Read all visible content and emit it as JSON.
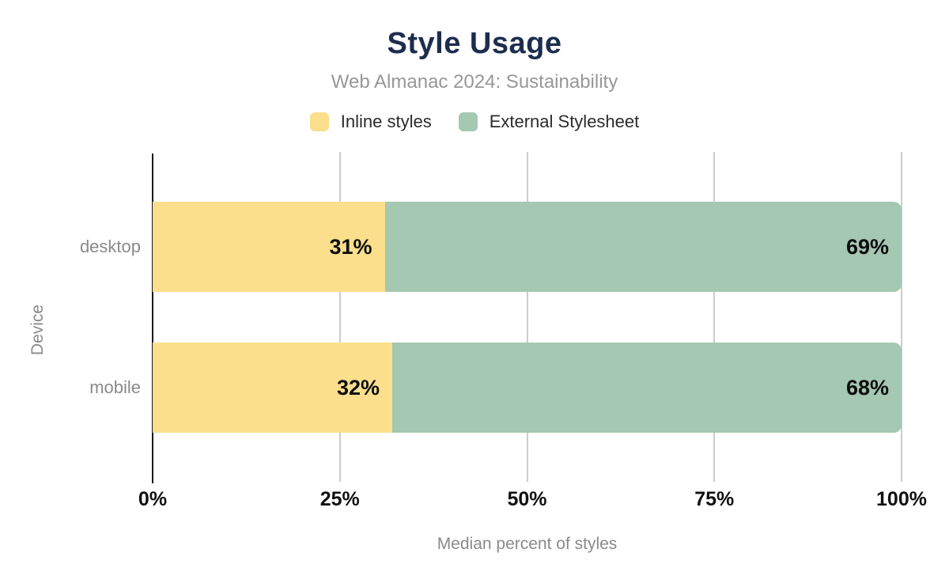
{
  "chart_data": {
    "type": "bar",
    "orientation": "horizontal",
    "stacked": true,
    "title": "Style Usage",
    "subtitle": "Web Almanac 2024: Sustainability",
    "xlabel": "Median percent of styles",
    "ylabel": "Device",
    "categories": [
      "desktop",
      "mobile"
    ],
    "series": [
      {
        "name": "Inline styles",
        "color": "#fbdf8d",
        "values": [
          31,
          32
        ],
        "labels": [
          "31%",
          "32%"
        ]
      },
      {
        "name": "External Stylesheet",
        "color": "#a4c8b2",
        "values": [
          69,
          68
        ],
        "labels": [
          "69%",
          "68%"
        ]
      }
    ],
    "xlim": [
      0,
      100
    ],
    "xticks": [
      "0%",
      "25%",
      "50%",
      "75%",
      "100%"
    ],
    "xtick_values": [
      0,
      25,
      50,
      75,
      100
    ],
    "grid": "vertical-gridlines",
    "legend_position": "top",
    "colors": {
      "title": "#1d2d4e",
      "subtitle": "#979797",
      "axis_text": "#8a8a8a",
      "tick_label": "#111111",
      "bar_label": "#0d0d0d",
      "gridline": "#cccccc",
      "axis_line": "#1a1a1a",
      "background": "#ffffff"
    }
  }
}
